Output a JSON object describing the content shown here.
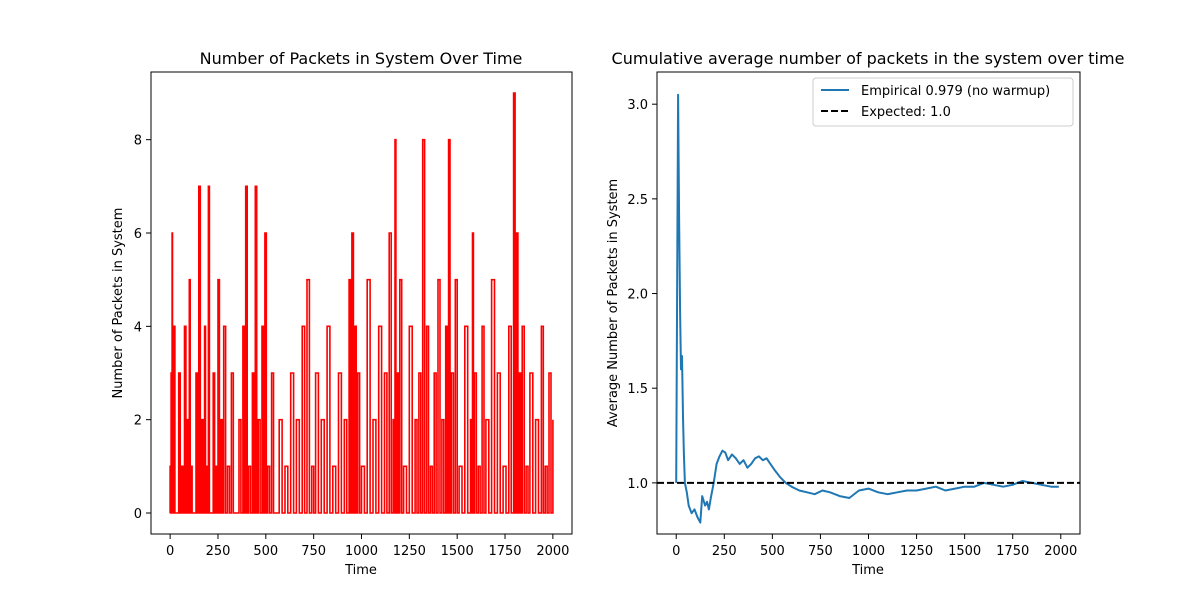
{
  "chart_data": [
    {
      "type": "line",
      "title": "Number of Packets in System Over Time",
      "xlabel": "Time",
      "ylabel": "Number of Packets in System",
      "xlim": [
        -100,
        2100
      ],
      "ylim": [
        -0.45,
        9.45
      ],
      "xticks": [
        0,
        250,
        500,
        750,
        1000,
        1250,
        1500,
        1750,
        2000
      ],
      "yticks": [
        0,
        2,
        4,
        6,
        8
      ],
      "grid": false,
      "color": "#ff0000",
      "series": [
        {
          "x": [
            0,
            5,
            10,
            15,
            20,
            30,
            45,
            60,
            75,
            90,
            100,
            110,
            120,
            135,
            150,
            165,
            180,
            190,
            200,
            210,
            225,
            240,
            250,
            265,
            280,
            300,
            320,
            340,
            360,
            380,
            395,
            410,
            430,
            445,
            460,
            480,
            495,
            510,
            530,
            550,
            570,
            600,
            630,
            660,
            690,
            715,
            740,
            760,
            790,
            820,
            850,
            880,
            910,
            935,
            950,
            965,
            980,
            1000,
            1030,
            1060,
            1090,
            1120,
            1145,
            1165,
            1175,
            1185,
            1200,
            1220,
            1250,
            1280,
            1300,
            1320,
            1340,
            1360,
            1380,
            1400,
            1420,
            1440,
            1455,
            1470,
            1490,
            1510,
            1540,
            1570,
            1580,
            1590,
            1610,
            1630,
            1650,
            1680,
            1710,
            1740,
            1770,
            1795,
            1810,
            1825,
            1840,
            1860,
            1880,
            1910,
            1940,
            1960,
            1980,
            2000
          ],
          "y": [
            1,
            3,
            6,
            2,
            4,
            0,
            3,
            1,
            4,
            2,
            5,
            1,
            0,
            3,
            7,
            2,
            4,
            1,
            7,
            0,
            3,
            1,
            5,
            2,
            4,
            1,
            3,
            0,
            2,
            4,
            7,
            1,
            3,
            7,
            2,
            4,
            6,
            1,
            3,
            0,
            2,
            1,
            3,
            2,
            4,
            5,
            1,
            3,
            2,
            4,
            1,
            3,
            2,
            5,
            6,
            4,
            3,
            1,
            5,
            2,
            4,
            3,
            6,
            2,
            8,
            3,
            5,
            1,
            4,
            2,
            3,
            8,
            4,
            1,
            3,
            5,
            2,
            4,
            8,
            3,
            5,
            1,
            4,
            2,
            6,
            3,
            1,
            4,
            2,
            5,
            3,
            1,
            4,
            9,
            6,
            3,
            4,
            1,
            3,
            2,
            4,
            1,
            3,
            2
          ]
        }
      ]
    },
    {
      "type": "line",
      "title": "Cumulative average number of packets in the system over time",
      "xlabel": "Time",
      "ylabel": "Average Number of Packets in System",
      "xlim": [
        -100,
        2100
      ],
      "ylim": [
        0.73,
        3.17
      ],
      "xticks": [
        0,
        250,
        500,
        750,
        1000,
        1250,
        1500,
        1750,
        2000
      ],
      "yticks": [
        1.0,
        1.5,
        2.0,
        2.5,
        3.0
      ],
      "ytick_labels": [
        "1.0",
        "1.5",
        "2.0",
        "2.5",
        "3.0"
      ],
      "grid": false,
      "legend_loc": "upper right",
      "series": [
        {
          "name": "Empirical  0.979 (no warmup)",
          "color": "#1f77b4",
          "style": "solid",
          "x": [
            0,
            5,
            10,
            15,
            20,
            25,
            30,
            35,
            40,
            45,
            55,
            65,
            80,
            95,
            110,
            125,
            135,
            150,
            160,
            170,
            180,
            195,
            210,
            225,
            240,
            255,
            270,
            290,
            310,
            330,
            350,
            370,
            390,
            410,
            430,
            450,
            470,
            490,
            510,
            540,
            570,
            600,
            640,
            680,
            720,
            760,
            800,
            850,
            900,
            950,
            1000,
            1050,
            1100,
            1150,
            1200,
            1250,
            1300,
            1350,
            1400,
            1450,
            1500,
            1550,
            1600,
            1650,
            1700,
            1750,
            1800,
            1850,
            1900,
            1950,
            1990
          ],
          "y": [
            1.0,
            2.1,
            3.05,
            2.4,
            1.9,
            1.6,
            1.67,
            1.35,
            1.15,
            1.0,
            0.95,
            0.88,
            0.84,
            0.86,
            0.82,
            0.79,
            0.93,
            0.88,
            0.9,
            0.86,
            0.92,
            1.0,
            1.1,
            1.14,
            1.17,
            1.16,
            1.12,
            1.15,
            1.13,
            1.1,
            1.12,
            1.08,
            1.1,
            1.13,
            1.14,
            1.12,
            1.13,
            1.1,
            1.07,
            1.03,
            1.0,
            0.98,
            0.96,
            0.95,
            0.94,
            0.96,
            0.95,
            0.93,
            0.92,
            0.96,
            0.97,
            0.95,
            0.94,
            0.95,
            0.96,
            0.96,
            0.97,
            0.98,
            0.96,
            0.97,
            0.98,
            0.98,
            1.0,
            0.99,
            0.98,
            0.99,
            1.01,
            1.0,
            0.99,
            0.98,
            0.98
          ]
        },
        {
          "name": "Expected: 1.0",
          "color": "#000000",
          "style": "dashed",
          "hline": 1.0
        }
      ]
    }
  ]
}
